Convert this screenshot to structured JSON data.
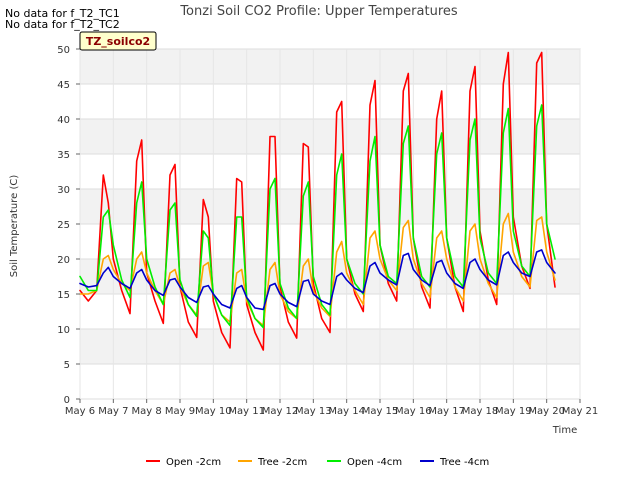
{
  "notices": [
    "No data for f_T2_TC1",
    "No data for f_T2_TC2"
  ],
  "chart_data": {
    "type": "line",
    "title": "Tonzi Soil CO2 Profile: Upper Temperatures",
    "xlabel": "Time",
    "ylabel": "Soil Temperature (C)",
    "tag": "TZ_soilco2",
    "xlim": [
      6,
      21
    ],
    "ylim": [
      0,
      50
    ],
    "yticks": [
      0,
      5,
      10,
      15,
      20,
      25,
      30,
      35,
      40,
      45,
      50
    ],
    "xtick_labels": [
      "May 6",
      "May 7",
      "May 8",
      "May 9",
      "May 10",
      "May 11",
      "May 12",
      "May 13",
      "May 14",
      "May 15",
      "May 16",
      "May 17",
      "May 18",
      "May 19",
      "May 20",
      "May 21"
    ],
    "grid": true,
    "legend_position": "bottom",
    "x": [
      6.0,
      6.25,
      6.5,
      6.7,
      6.85,
      7.0,
      7.25,
      7.5,
      7.7,
      7.85,
      8.0,
      8.25,
      8.5,
      8.7,
      8.85,
      9.0,
      9.25,
      9.5,
      9.7,
      9.85,
      10.0,
      10.25,
      10.5,
      10.7,
      10.85,
      11.0,
      11.25,
      11.5,
      11.7,
      11.85,
      12.0,
      12.25,
      12.5,
      12.7,
      12.85,
      13.0,
      13.25,
      13.5,
      13.7,
      13.85,
      14.0,
      14.25,
      14.5,
      14.7,
      14.85,
      15.0,
      15.25,
      15.5,
      15.7,
      15.85,
      16.0,
      16.25,
      16.5,
      16.7,
      16.85,
      17.0,
      17.25,
      17.5,
      17.7,
      17.85,
      18.0,
      18.25,
      18.5,
      18.7,
      18.85,
      19.0,
      19.25,
      19.5,
      19.7,
      19.85,
      20.0,
      20.25
    ],
    "series": [
      {
        "name": "Open -2cm",
        "color": "#ff0000",
        "values": [
          15.5,
          14.0,
          15.5,
          32.0,
          28.0,
          20.0,
          15.5,
          12.2,
          34.0,
          37.0,
          18.0,
          14.0,
          10.8,
          32.0,
          33.5,
          16.0,
          11.0,
          8.8,
          28.5,
          26.0,
          14.0,
          9.5,
          7.3,
          31.5,
          31.0,
          13.5,
          9.5,
          7.0,
          37.5,
          37.5,
          16.0,
          11.0,
          8.7,
          36.5,
          36.0,
          16.5,
          11.5,
          9.5,
          41.0,
          42.5,
          20.0,
          15.0,
          12.5,
          42.0,
          45.5,
          22.0,
          16.5,
          14.0,
          44.0,
          46.5,
          23.0,
          16.0,
          13.0,
          40.0,
          44.0,
          23.0,
          16.0,
          12.5,
          44.0,
          47.5,
          24.0,
          17.0,
          13.5,
          45.0,
          49.5,
          26.0,
          19.0,
          15.8,
          48.0,
          49.5,
          25.0,
          16.0
        ]
      },
      {
        "name": "Tree -2cm",
        "color": "#ffa500",
        "values": [
          15.0,
          15.0,
          15.5,
          20.0,
          20.5,
          18.5,
          16.5,
          15.5,
          20.0,
          21.0,
          18.0,
          15.5,
          13.5,
          18.0,
          18.5,
          16.0,
          13.5,
          12.0,
          19.0,
          19.5,
          15.0,
          12.0,
          11.0,
          18.0,
          18.5,
          14.0,
          11.5,
          10.5,
          18.5,
          19.5,
          15.0,
          12.5,
          11.5,
          19.0,
          20.0,
          15.5,
          13.0,
          11.8,
          21.0,
          22.5,
          18.0,
          15.5,
          13.5,
          23.0,
          24.0,
          20.0,
          17.0,
          15.5,
          24.5,
          25.5,
          20.0,
          16.5,
          14.5,
          23.0,
          24.0,
          20.0,
          16.0,
          14.0,
          24.0,
          25.0,
          20.0,
          16.5,
          14.5,
          25.0,
          26.5,
          21.0,
          17.5,
          16.0,
          25.5,
          26.0,
          21.0,
          17.0
        ]
      },
      {
        "name": "Open -4cm",
        "color": "#00ee00",
        "values": [
          17.5,
          15.5,
          15.5,
          26.0,
          27.0,
          22.0,
          17.0,
          14.5,
          28.0,
          31.0,
          20.0,
          16.0,
          13.5,
          27.0,
          28.0,
          17.0,
          13.5,
          11.8,
          24.0,
          23.0,
          15.0,
          12.0,
          10.5,
          26.0,
          26.0,
          14.5,
          11.5,
          10.2,
          30.0,
          31.5,
          16.5,
          13.0,
          11.5,
          29.0,
          31.0,
          17.5,
          13.5,
          12.0,
          32.0,
          35.0,
          20.0,
          16.5,
          15.0,
          34.0,
          37.5,
          22.0,
          17.5,
          16.5,
          36.5,
          39.0,
          23.0,
          17.5,
          16.0,
          35.0,
          38.0,
          23.0,
          17.5,
          16.0,
          37.0,
          40.0,
          23.0,
          18.0,
          16.5,
          38.0,
          41.5,
          24.0,
          19.0,
          17.5,
          39.0,
          42.0,
          25.0,
          20.0
        ]
      },
      {
        "name": "Tree -4cm",
        "color": "#0000cc",
        "values": [
          16.5,
          16.0,
          16.2,
          18.0,
          18.8,
          17.5,
          16.5,
          15.8,
          18.0,
          18.5,
          17.0,
          15.5,
          14.8,
          17.0,
          17.2,
          16.0,
          14.5,
          13.8,
          16.0,
          16.2,
          15.0,
          13.5,
          13.0,
          15.8,
          16.2,
          14.5,
          13.0,
          12.8,
          16.2,
          16.5,
          15.0,
          13.8,
          13.2,
          16.8,
          17.0,
          15.0,
          14.0,
          13.5,
          17.5,
          18.0,
          17.0,
          15.8,
          15.2,
          19.0,
          19.5,
          18.0,
          17.0,
          16.3,
          20.5,
          20.8,
          18.5,
          17.0,
          16.2,
          19.5,
          19.8,
          18.0,
          16.5,
          15.8,
          19.5,
          20.0,
          18.5,
          17.0,
          16.3,
          20.5,
          21.0,
          19.5,
          18.0,
          17.5,
          21.0,
          21.3,
          19.5,
          18.0
        ]
      }
    ]
  }
}
